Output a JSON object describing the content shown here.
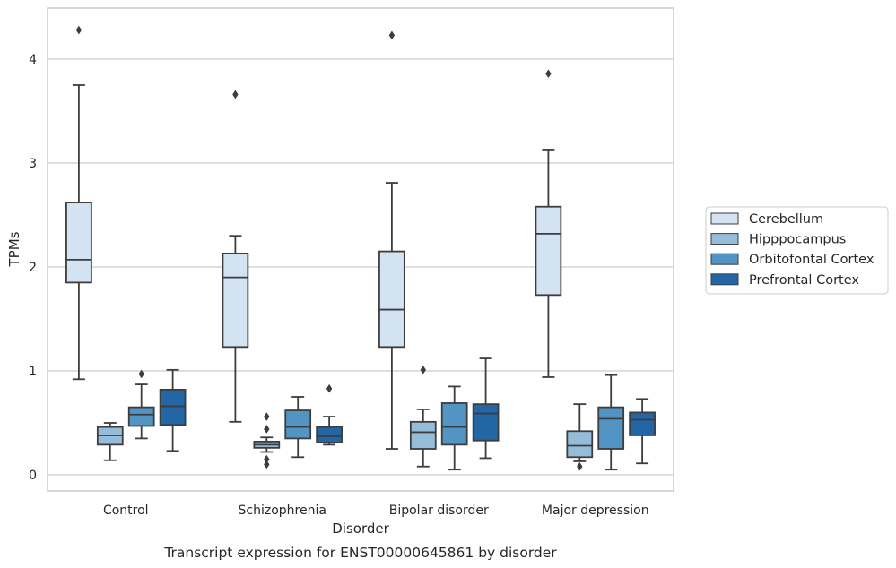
{
  "chart_data": {
    "type": "box",
    "title": "",
    "caption": "Transcript expression for ENST00000645861 by disorder",
    "xlabel": "Disorder",
    "ylabel": "TPMs",
    "ylim": [
      -0.15,
      4.5
    ],
    "yticks": [
      "0",
      "1",
      "2",
      "3",
      "4"
    ],
    "grid": "horizontal",
    "legend_position": "outside-right",
    "categories": [
      "Control",
      "Schizophrenia",
      "Bipolar disorder",
      "Major depression"
    ],
    "series": [
      {
        "name": "Cerebellum",
        "color": "#d3e3f1",
        "boxes": [
          {
            "whislo": 0.92,
            "q1": 1.85,
            "med": 2.07,
            "q3": 2.62,
            "whishi": 3.75,
            "fliers": [
              4.28
            ]
          },
          {
            "whislo": 0.51,
            "q1": 1.23,
            "med": 1.9,
            "q3": 2.13,
            "whishi": 2.3,
            "fliers": [
              3.66
            ]
          },
          {
            "whislo": 0.25,
            "q1": 1.23,
            "med": 1.59,
            "q3": 2.15,
            "whishi": 2.81,
            "fliers": [
              4.23
            ]
          },
          {
            "whislo": 0.94,
            "q1": 1.73,
            "med": 2.32,
            "q3": 2.58,
            "whishi": 3.13,
            "fliers": [
              3.86
            ]
          }
        ]
      },
      {
        "name": "Hipppocampus",
        "color": "#95bdda",
        "boxes": [
          {
            "whislo": 0.14,
            "q1": 0.29,
            "med": 0.38,
            "q3": 0.46,
            "whishi": 0.5,
            "fliers": []
          },
          {
            "whislo": 0.22,
            "q1": 0.26,
            "med": 0.29,
            "q3": 0.32,
            "whishi": 0.36,
            "fliers": [
              0.56,
              0.44,
              0.15,
              0.1
            ]
          },
          {
            "whislo": 0.08,
            "q1": 0.25,
            "med": 0.41,
            "q3": 0.51,
            "whishi": 0.63,
            "fliers": [
              1.01
            ]
          },
          {
            "whislo": 0.13,
            "q1": 0.17,
            "med": 0.28,
            "q3": 0.42,
            "whishi": 0.68,
            "fliers": [
              0.08
            ]
          }
        ]
      },
      {
        "name": "Orbitofontal Cortex",
        "color": "#5295c4",
        "boxes": [
          {
            "whislo": 0.35,
            "q1": 0.47,
            "med": 0.58,
            "q3": 0.65,
            "whishi": 0.87,
            "fliers": [
              0.97
            ]
          },
          {
            "whislo": 0.17,
            "q1": 0.35,
            "med": 0.46,
            "q3": 0.62,
            "whishi": 0.75,
            "fliers": []
          },
          {
            "whislo": 0.05,
            "q1": 0.29,
            "med": 0.46,
            "q3": 0.69,
            "whishi": 0.85,
            "fliers": []
          },
          {
            "whislo": 0.05,
            "q1": 0.25,
            "med": 0.54,
            "q3": 0.65,
            "whishi": 0.96,
            "fliers": []
          }
        ]
      },
      {
        "name": "Prefrontal Cortex",
        "color": "#2266a6",
        "boxes": [
          {
            "whislo": 0.23,
            "q1": 0.48,
            "med": 0.66,
            "q3": 0.82,
            "whishi": 1.01,
            "fliers": []
          },
          {
            "whislo": 0.29,
            "q1": 0.31,
            "med": 0.37,
            "q3": 0.46,
            "whishi": 0.56,
            "fliers": [
              0.83
            ]
          },
          {
            "whislo": 0.16,
            "q1": 0.33,
            "med": 0.59,
            "q3": 0.68,
            "whishi": 1.12,
            "fliers": []
          },
          {
            "whislo": 0.11,
            "q1": 0.38,
            "med": 0.53,
            "q3": 0.6,
            "whishi": 0.73,
            "fliers": []
          }
        ]
      }
    ]
  }
}
